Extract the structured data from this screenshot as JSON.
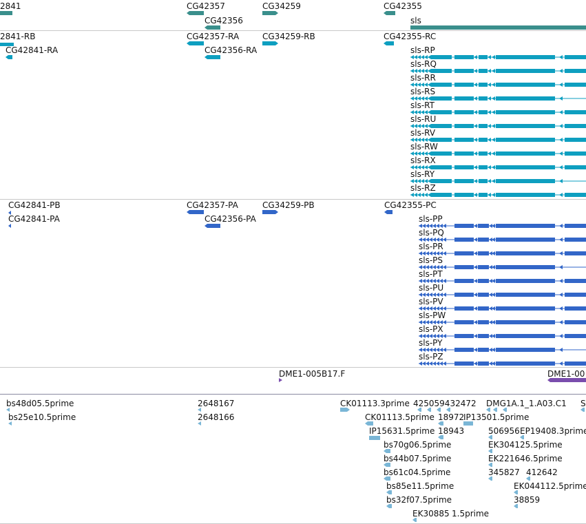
{
  "colors": {
    "gene": "#3a8f8c",
    "transcript": "#0e9fc0",
    "protein": "#3266c8",
    "clone": "#7a4dad",
    "est": "#7ab6d6",
    "separator": "#c8c8c8"
  },
  "gene_track": {
    "labels": [
      "2841",
      "CG42357",
      "CG34259",
      "CG42355",
      "CG42356",
      "sls"
    ]
  },
  "transcript_track": {
    "labels": [
      "2841-RB",
      "CG42841-RA",
      "CG42357-RA",
      "CG42356-RA",
      "CG34259-RB",
      "CG42355-RC"
    ],
    "isoforms": [
      "sls-RP",
      "sls-RQ",
      "sls-RR",
      "sls-RS",
      "sls-RT",
      "sls-RU",
      "sls-RV",
      "sls-RW",
      "sls-RX",
      "sls-RY",
      "sls-RZ"
    ]
  },
  "protein_track": {
    "labels": [
      "CG42841-PB",
      "CG42841-PA",
      "CG42357-PA",
      "CG42356-PA",
      "CG34259-PB",
      "CG42355-PC"
    ],
    "isoforms": [
      "sls-PP",
      "sls-PQ",
      "sls-PR",
      "sls-PS",
      "sls-PT",
      "sls-PU",
      "sls-PV",
      "sls-PW",
      "sls-PX",
      "sls-PY",
      "sls-PZ"
    ]
  },
  "clone_track": {
    "labels": [
      "DME1-005B17.F",
      "DME1-00"
    ]
  },
  "est_track": {
    "labels": [
      "bs48d05.5prime",
      "bs25e10.5prime",
      "2648167",
      "2648166",
      "CK01113.3prime",
      "425059432472",
      "DMG1A.1_1.A03.C1",
      "S",
      "CK01113.5prime",
      "18972",
      "IP13501.5prime",
      "IP15631.5prime",
      "18943",
      "506956",
      "EP19408.3prime",
      "bs70g06.5prime",
      "EK304125.5prime",
      "bs44b07.5prime",
      "EK221646.5prime",
      "bs61c04.5prime",
      "345827",
      "412642",
      "bs85e11.5prime",
      "EK044112.5prime",
      "bs32f07.5prime",
      "38859",
      "EK30885",
      "1.5prime"
    ]
  }
}
